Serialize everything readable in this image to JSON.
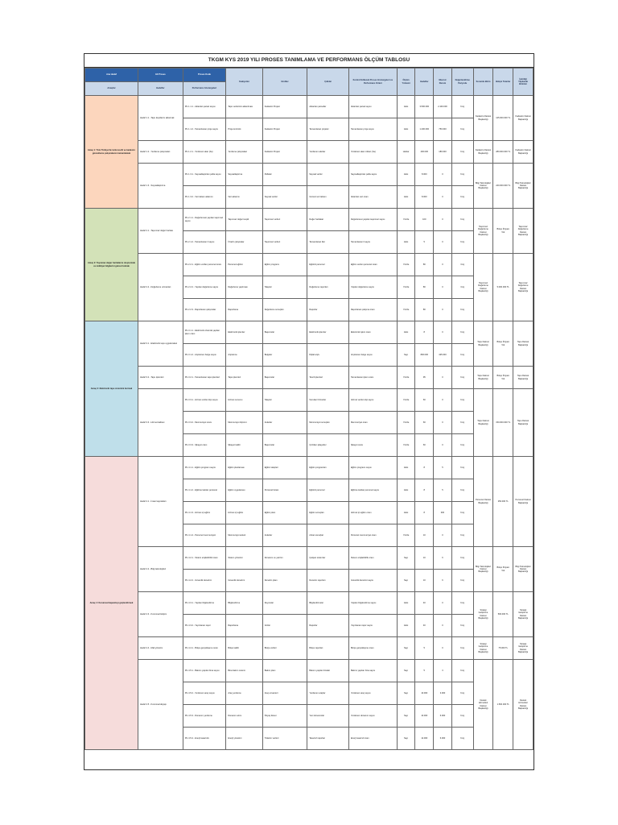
{
  "document": {
    "title": "TKGM KYS 2019 YILI PROSES TANIMLAMA VE PERFORMANS ÖLÇÜM TABLOSU"
  },
  "columns": {
    "top": [
      "Ana Hedef",
      "Alt Proses",
      "Proses Kodu"
    ],
    "bottom": [
      "Amaçlar",
      "Hedefler",
      "Performans Göstergeleri"
    ],
    "rest": [
      "Faaliyetler",
      "Girdiler",
      "Çıktılar",
      "Kontrol Edilecek Proses Göstergeleri ve Performans Kriteri",
      "Ölçüm Yöntemi",
      "Hedefler",
      "Mevcut Durum",
      "Değerlendirme Periyodu",
      "Sorumlu Birim",
      "Bütçe/ Tutarlar",
      "İşbirliği Yapılacak Birimler"
    ]
  },
  "groups": [
    {
      "class": "g1",
      "amac": "Amaç 1: Tüm Türkiye'de tarla tescili ve kadastro güncelleme çalışmalarını tamamlamak",
      "hedefler": [
        {
          "hedef": "Hedef 1.1 - Tapu kayıtlarını aktarmak",
          "unit": "Kadastro Dairesi Başkanlığı",
          "butce": "125.000.000 TL",
          "rows": [
            {
              "pg": "PG 1.1.1 - Aktarılan parsel sayısı",
              "fa": "Tapu verilerinin aktarılması",
              "gi": "Kadastro Projesi",
              "ci": "Aktarılan parseller",
              "ko": "Aktarılan parsel sayısı",
              "ol": "Adet",
              "he": "3.500.000",
              "me": "2.100.000",
              "dp": "6 Ay"
            },
            {
              "pg": "PG 1.1.2 - Tamamlanan proje sayısı",
              "fa": "Proje kontrolü",
              "gi": "Kadastro Projesi",
              "ci": "Tamamlanan projeler",
              "ko": "Tamamlanan proje sayısı",
              "ol": "Adet",
              "he": "1.200.000",
              "me": "750.000",
              "dp": "6 Ay"
            }
          ]
        },
        {
          "hedef": "Hedef 1.2 - Yenileme çalışmaları",
          "unit": "Kadastro Dairesi Başkanlığı",
          "butce": "280.000.000 TL",
          "rows": [
            {
              "pg": "PG 1.2.1 - Yenilenen alan (ha)",
              "fa": "Yenileme çalışmaları",
              "gi": "Kadastro Projesi",
              "ci": "Yenilenen alanlar",
              "ko": "Yenilenen alan miktarı (ha)",
              "ol": "Hektar",
              "he": "400.000",
              "me": "180.000",
              "dp": "6 Ay"
            }
          ]
        },
        {
          "hedef": "Hedef 1.3 - Sayısallaştırma",
          "unit": "Bilgi Teknolojileri Dairesi Başkanlığı",
          "butce": "240.000.000 TL",
          "rows": [
            {
              "pg": "PG 1.3.1 - Sayısallaştırılan pafta sayısı",
              "fa": "Sayısallaştırma",
              "gi": "Paftalar",
              "ci": "Sayısal veriler",
              "ko": "Sayısallaştırılan pafta sayısı",
              "ol": "Adet",
              "he": "8.000",
              "me": "0",
              "dp": "6 Ay"
            },
            {
              "pg": "PG 1.3.2 - Veri tabanı aktarımı",
              "fa": "Veri aktarımı",
              "gi": "Sayısal veriler",
              "ci": "Güncel veri tabanı",
              "ko": "Aktarılan veri oranı",
              "ol": "Adet",
              "he": "8.000",
              "me": "0",
              "dp": "6 Ay"
            }
          ]
        }
      ]
    },
    {
      "class": "g2",
      "amac": "Amaç 2: Taşınmaz değer haritalarını oluşturmak ve mülkiyet bilgilerini güncel tutmak",
      "hedefler": [
        {
          "hedef": "Hedef 2.1 - Taşınmaz değer haritası",
          "unit": "Taşınmaz Değerleme Dairesi Başkanlığı",
          "butce": "Bütçe İhtiyacı Yok",
          "rows": [
            {
              "pg": "PG 2.1.1 - Değerlemesi yapılan taşınmaz sayısı",
              "fa": "Taşınmaz değer tespiti",
              "gi": "Taşınmaz verileri",
              "ci": "Değer haritaları",
              "ko": "Değerlemesi yapılan taşınmaz sayısı",
              "ol": "Yüzde",
              "he": "100",
              "me": "0",
              "dp": "6 Ay"
            },
            {
              "pg": "PG 2.1.2 - Tamamlanan il sayısı",
              "fa": "İl bazlı çalışmalar",
              "gi": "Taşınmaz verileri",
              "ci": "Tamamlanan iller",
              "ko": "Tamamlanan il sayısı",
              "ol": "Adet",
              "he": "5",
              "me": "0",
              "dp": "6 Ay"
            }
          ]
        },
        {
          "hedef": "Hedef 2.2 - Değerleme uzmanları",
          "unit": "Taşınmaz Değerleme Dairesi Başkanlığı",
          "butce": "5.000.000 TL",
          "rows": [
            {
              "pg": "PG 2.2.1 - Eğitim verilen personel oranı",
              "fa": "Personel eğitimi",
              "gi": "Eğitim programı",
              "ci": "Eğitimli personel",
              "ko": "Eğitim verilen personel oranı",
              "ol": "Yüzde",
              "he": "80",
              "me": "0",
              "dp": "3 Ay"
            },
            {
              "pg": "PG 2.2.2 - Yapılan değerleme sayısı",
              "fa": "Değerleme yapılması",
              "gi": "Talepler",
              "ci": "Değerleme raporları",
              "ko": "Yapılan değerleme sayısı",
              "ol": "Yüzde",
              "he": "80",
              "me": "0",
              "dp": "3 Ay"
            },
            {
              "pg": "PG 2.2.3 - Raporlanan çalışmalar",
              "fa": "Raporlama",
              "gi": "Değerleme sonuçları",
              "ci": "Raporlar",
              "ko": "Raporlanan çalışma oranı",
              "ol": "Yüzde",
              "he": "80",
              "me": "0",
              "dp": "6 Ay"
            }
          ]
        }
      ]
    },
    {
      "class": "g3",
      "amac": "Amaç 3: Elektronik tapu sistemini kurmak",
      "hedefler": [
        {
          "hedef": "Hedef 3.1 - Elektronik tapu uygulamaları",
          "unit": "Tapu Dairesi Başkanlığı",
          "butce": "Bütçe İhtiyacı Yok",
          "rows": [
            {
              "pg": "PG 3.1.1 - Elektronik ortamda yapılan işlem oranı",
              "fa": "Elektronik işlemler",
              "gi": "Başvurular",
              "ci": "Elektronik işlemler",
              "ko": "Elektronik işlem oranı",
              "ol": "Adet",
              "he": "8",
              "me": "0",
              "dp": "6 Ay"
            },
            {
              "pg": "PG 3.1.2 - Arşivlenen belge sayısı",
              "fa": "Arşivleme",
              "gi": "Belgeler",
              "ci": "Dijital arşiv",
              "ko": "Arşivlenen belge sayısı",
              "ol": "Sayı",
              "he": "800.000",
              "me": "425.000",
              "dp": "6 Ay"
            }
          ]
        },
        {
          "hedef": "Hedef 3.2 - Tapu işlemleri",
          "unit": "Tapu Dairesi Başkanlığı",
          "butce": "Bütçe İhtiyacı Yok",
          "rows": [
            {
              "pg": "PG 3.2.1 - Tamamlanan tapu işlemleri",
              "fa": "Tapu işlemleri",
              "gi": "Başvurular",
              "ci": "Tescil işlemleri",
              "ko": "Tamamlanan işlem oranı",
              "ol": "Yüzde",
              "he": "95",
              "me": "0",
              "dp": "6 Ay"
            }
          ]
        },
        {
          "hedef": "Hedef 3.3 - Hizmet kalitesi",
          "unit": "Tapu Dairesi Başkanlığı",
          "butce": "150.000.000 TL",
          "rows": [
            {
              "pg": "PG 3.3.1 - Hizmet verilen kişi sayısı",
              "fa": "Hizmet sunumu",
              "gi": "Talepler",
              "ci": "Sunulan hizmetler",
              "ko": "Hizmet verilen kişi sayısı",
              "ol": "Yüzde",
              "he": "60",
              "me": "0",
              "dp": "6 Ay"
            },
            {
              "pg": "PG 3.3.2 - Memnuniyet oranı",
              "fa": "Memnuniyet ölçümü",
              "gi": "Anketler",
              "ci": "Memnuniyet sonuçları",
              "ko": "Memnuniyet oranı",
              "ol": "Yüzde",
              "he": "60",
              "me": "0",
              "dp": "6 Ay"
            },
            {
              "pg": "PG 3.3.3 - Şikayet oranı",
              "fa": "Şikayet takibi",
              "gi": "Başvurular",
              "ci": "Çözülen şikayetler",
              "ko": "Şikayet oranı",
              "ol": "Yüzde",
              "he": "60",
              "me": "0",
              "dp": "6 Ay"
            }
          ]
        }
      ]
    },
    {
      "class": "g4",
      "amac": "Amaç 4: Kurumsal kapasiteyi güçlendirmek",
      "hedefler": [
        {
          "hedef": "Hedef 4.1 - İnsan kaynakları",
          "unit": "Personel Dairesi Başkanlığı",
          "butce": "250.000 TL",
          "rows": [
            {
              "pg": "PG 4.1.1 - Eğitim programı sayısı",
              "fa": "Eğitim planlaması",
              "gi": "Eğitim talepleri",
              "ci": "Eğitim programları",
              "ko": "Eğitim programı sayısı",
              "ol": "Adet",
              "he": "8",
              "me": "5",
              "dp": "6 Ay"
            },
            {
              "pg": "PG 4.1.2 - Eğitime katılan personel",
              "fa": "Eğitim uygulaması",
              "gi": "Personel listesi",
              "ci": "Eğitimli personel",
              "ko": "Eğitime katılan personel sayısı",
              "ol": "Adet",
              "he": "8",
              "me": "5",
              "dp": "6 Ay"
            },
            {
              "pg": "PG 4.1.3 - Hizmet içi eğitim",
              "fa": "Hizmet içi eğitim",
              "gi": "Eğitim planı",
              "ci": "Eğitim sonuçları",
              "ko": "Hizmet içi eğitim oranı",
              "ol": "Adet",
              "he": "8",
              "me": "300",
              "dp": "6 Ay"
            },
            {
              "pg": "PG 4.1.4 - Personel memnuniyeti",
              "fa": "Memnuniyet anketi",
              "gi": "Anketler",
              "ci": "Anket sonuçları",
              "ko": "Personel memnuniyet oranı",
              "ol": "Yüzde",
              "he": "10",
              "me": "0",
              "dp": "6 Ay"
            }
          ]
        },
        {
          "hedef": "Hedef 4.2 - Bilgi teknolojileri",
          "unit": "Bilgi Teknolojileri Dairesi Başkanlığı",
          "butce": "Bütçe İhtiyacı Yok",
          "rows": [
            {
              "pg": "PG 4.2.1 - Sistem erişilebilirlik oranı",
              "fa": "Sistem yönetimi",
              "gi": "Donanım ve yazılım",
              "ci": "Çalışan sistemler",
              "ko": "Sistem erişilebilirlik oranı",
              "ol": "Sayı",
              "he": "10",
              "me": "6",
              "dp": "6 Ay"
            },
            {
              "pg": "PG 4.2.2 - Güvenlik denetimi",
              "fa": "Güvenlik denetimi",
              "gi": "Denetim planı",
              "ci": "Denetim raporları",
              "ko": "Güvenlik denetimi sayısı",
              "ol": "Sayı",
              "he": "10",
              "me": "6",
              "dp": "6 Ay"
            }
          ]
        },
        {
          "hedef": "Hedef 4.3 - Kurumsal iletişim",
          "unit": "Strateji Geliştirme Dairesi Başkanlığı",
          "butce": "500.000 TL",
          "rows": [
            {
              "pg": "PG 4.3.1 - Yapılan bilgilendirme",
              "fa": "Bilgilendirme",
              "gi": "Duyurular",
              "ci": "Bilgilendirmeler",
              "ko": "Yapılan bilgilendirme sayısı",
              "ol": "Adet",
              "he": "40",
              "me": "0",
              "dp": "6 Ay"
            },
            {
              "pg": "PG 4.3.2 - Yayınlanan rapor",
              "fa": "Raporlama",
              "gi": "Veriler",
              "ci": "Raporlar",
              "ko": "Yayınlanan rapor sayısı",
              "ol": "Adet",
              "he": "40",
              "me": "0",
              "dp": "6 Ay"
            }
          ]
        },
        {
          "hedef": "Hedef 4.4 - Mali yönetim",
          "unit": "Strateji Geliştirme Dairesi Başkanlığı",
          "butce": "75.000 TL",
          "rows": [
            {
              "pg": "PG 4.4.1 - Bütçe gerçekleşme oranı",
              "fa": "Bütçe takibi",
              "gi": "Bütçe verileri",
              "ci": "Bütçe raporları",
              "ko": "Bütçe gerçekleşme oranı",
              "ol": "Sayı",
              "he": "5",
              "me": "0",
              "dp": "6 Ay"
            }
          ]
        },
        {
          "hedef": "Hedef 4.5 - Kurumsal altyapı",
          "unit": "Destek Hizmetleri Dairesi Başkanlığı",
          "butce": "1.500.000 TL",
          "rows": [
            {
              "pg": "PG 4.5.1 - Bakımı yapılan bina sayısı",
              "fa": "Bina bakım onarım",
              "gi": "Bakım planı",
              "ci": "Bakımı yapılan binalar",
              "ko": "Bakımı yapılan bina sayısı",
              "ol": "Sayı",
              "he": "5",
              "me": "3",
              "dp": "6 Ay"
            },
            {
              "pg": "PG 4.5.2 - Yenilenen araç sayısı",
              "fa": "Araç yenileme",
              "gi": "Araç envanteri",
              "ci": "Yenilenen araçlar",
              "ko": "Yenilenen araç sayısı",
              "ol": "Sayı",
              "he": "10.000",
              "me": "3.000",
              "dp": "6 Ay"
            },
            {
              "pg": "PG 4.5.3 - Donanım yenileme",
              "fa": "Donanım alımı",
              "gi": "İhtiyaç listesi",
              "ci": "Yeni donanımlar",
              "ko": "Yenilenen donanım sayısı",
              "ol": "Sayı",
              "he": "10.000",
              "me": "6.000",
              "dp": "6 Ay"
            },
            {
              "pg": "PG 4.5.4 - Enerji tasarrufu",
              "fa": "Enerji yönetimi",
              "gi": "Tüketim verileri",
              "ci": "Tasarruf raporları",
              "ko": "Enerji tasarruf oranı",
              "ol": "Sayı",
              "he": "12.000",
              "me": "6.000",
              "dp": "6 Ay"
            }
          ]
        }
      ]
    }
  ]
}
